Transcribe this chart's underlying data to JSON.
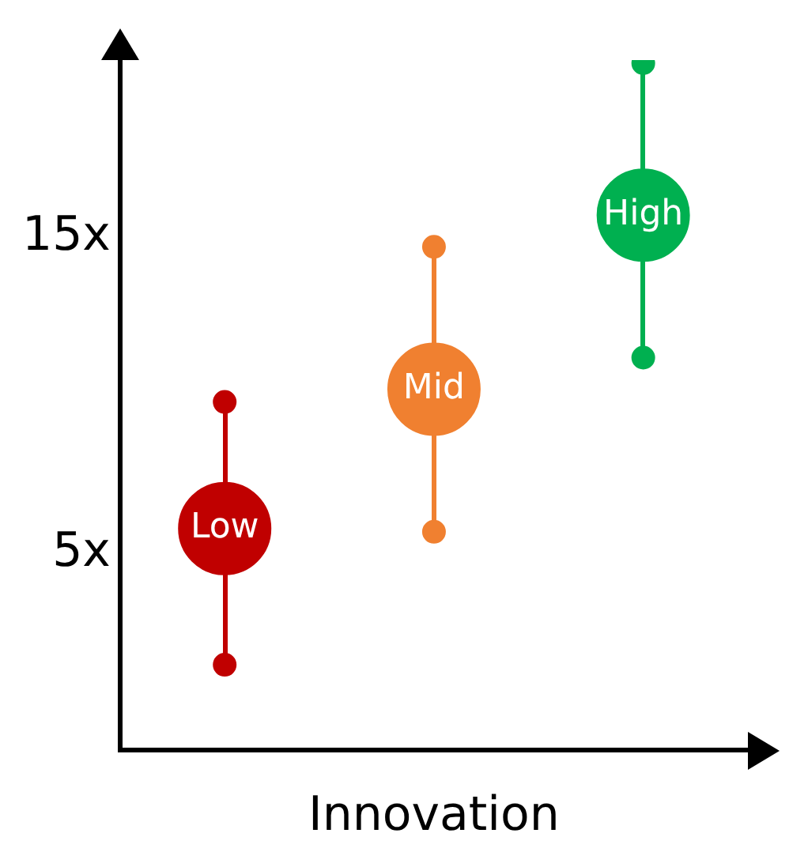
{
  "chart_data": {
    "type": "scatter",
    "xlabel": "Innovation",
    "categories": [
      null,
      null,
      null
    ],
    "series": [
      {
        "type": "scatter",
        "colors": [
          "#c00000",
          "#f08030",
          "#00b050"
        ],
        "values": [
          1.5,
          5.7,
          11.2
        ]
      },
      {
        "type": "scatter",
        "colors": [
          "#c00000",
          "#f08030",
          "#00b050"
        ],
        "values": [
          9.8,
          14.7,
          20.5
        ]
      },
      {
        "name": "Low",
        "color": "#c00000",
        "values": [
          5.8,
          null,
          null
        ]
      },
      {
        "name": "Mid",
        "color": "#f08030",
        "values": [
          null,
          10.2,
          null
        ]
      },
      {
        "name": "High",
        "color": "#00b050",
        "values": [
          null,
          null,
          15.7
        ]
      }
    ],
    "ylim": [
      -1.2,
      20.6
    ],
    "yticks": [
      {
        "value": 5,
        "label": "5x"
      },
      {
        "value": 15,
        "label": "15x"
      }
    ],
    "grid": false,
    "legend": false,
    "marker": "circle"
  }
}
